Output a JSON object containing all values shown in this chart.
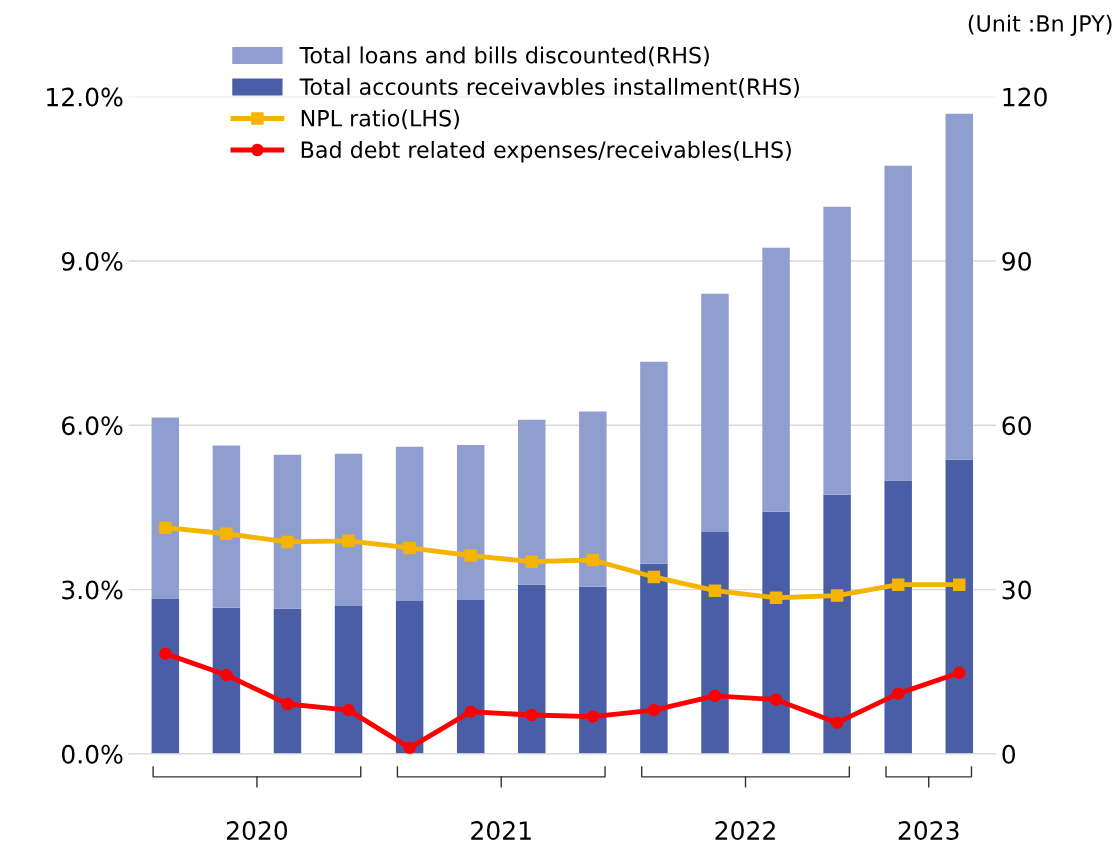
{
  "chart_data": {
    "type": "bar",
    "stacked": true,
    "categories": [
      null,
      null,
      null,
      null,
      null,
      null,
      null,
      null,
      null,
      null,
      null,
      null,
      null,
      null
    ],
    "series": [
      {
        "name": "Total accounts receivavbles installment(RHS)",
        "color": "#4a5ea8",
        "axis": "y2",
        "values": [
          28.3,
          26.7,
          26.5,
          27.0,
          27.9,
          28.1,
          30.9,
          30.5,
          34.7,
          40.5,
          44.2,
          47.3,
          49.9,
          53.7
        ]
      },
      {
        "name": "Total loans and bills discounted(RHS)",
        "color": "#8f9ecf",
        "axis": "y2",
        "values": [
          33.1,
          29.6,
          28.1,
          27.8,
          28.2,
          28.3,
          30.1,
          32.0,
          36.9,
          43.5,
          48.2,
          52.6,
          57.5,
          63.2
        ]
      },
      {
        "name": "NPL ratio(LHS)",
        "type": "line",
        "color": "#f5b400",
        "marker": "square",
        "values": [
          4.13,
          4.02,
          3.87,
          3.89,
          3.76,
          3.62,
          3.51,
          3.54,
          3.23,
          2.98,
          2.85,
          2.89,
          3.09,
          3.09
        ]
      },
      {
        "name": "Bad debt related expenses/receivables(LHS)",
        "type": "line",
        "color": "#ff0000",
        "marker": "circle",
        "values": [
          1.83,
          1.44,
          0.91,
          0.8,
          0.11,
          0.77,
          0.71,
          0.68,
          0.8,
          1.06,
          0.99,
          0.57,
          1.1,
          1.48
        ]
      }
    ],
    "ylim": [
      0,
      12
    ],
    "yticks": [
      {
        "value": 0,
        "label": "0.0%"
      },
      {
        "value": 3,
        "label": "3.0%"
      },
      {
        "value": 6,
        "label": "6.0%"
      },
      {
        "value": 9,
        "label": "9.0%"
      },
      {
        "value": 12,
        "label": "12.0%"
      }
    ],
    "y2lim": [
      0,
      120
    ],
    "y2ticks": [
      0,
      30,
      60,
      90,
      120
    ],
    "grid": "y",
    "legend": "top left",
    "annotations": [
      "(Unit :Bn JPY)",
      "2020",
      "2021",
      "2022",
      "2023"
    ]
  }
}
